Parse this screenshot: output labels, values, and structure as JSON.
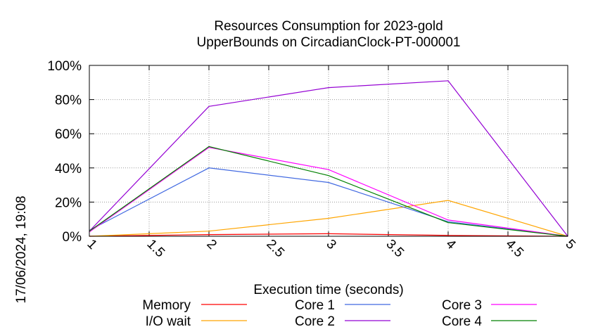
{
  "chart_data": {
    "type": "line",
    "title": "Resources Consumption for 2023-gold",
    "subtitle": "UpperBounds on CircadianClock-PT-000001",
    "xlabel": "Execution time (seconds)",
    "ylabel": "",
    "side_label": "17/06/2024, 19:08",
    "xlim": [
      1,
      5
    ],
    "ylim": [
      0,
      100
    ],
    "x_ticks": [
      "1",
      "1.5",
      "2",
      "2.5",
      "3",
      "3.5",
      "4",
      "4.5",
      "5"
    ],
    "y_ticks": [
      "0%",
      "20%",
      "40%",
      "60%",
      "80%",
      "100%"
    ],
    "grid": true,
    "legend_position": "bottom",
    "x": [
      1,
      2,
      3,
      4,
      5
    ],
    "series": [
      {
        "name": "Memory",
        "color": "#ff0000",
        "values": [
          0,
          1,
          1.5,
          0.5,
          0
        ]
      },
      {
        "name": "I/O wait",
        "color": "#ffa500",
        "values": [
          0,
          3,
          10.5,
          21,
          0
        ]
      },
      {
        "name": "Core 1",
        "color": "#4169e1",
        "values": [
          3.5,
          40,
          31.5,
          8.5,
          0
        ]
      },
      {
        "name": "Core 2",
        "color": "#9400d3",
        "values": [
          3,
          76,
          87,
          91,
          0
        ]
      },
      {
        "name": "Core 3",
        "color": "#ff00ff",
        "values": [
          2.5,
          52,
          39,
          9.5,
          0
        ]
      },
      {
        "name": "Core 4",
        "color": "#008000",
        "values": [
          3,
          52.5,
          35.5,
          8,
          0
        ]
      }
    ]
  }
}
